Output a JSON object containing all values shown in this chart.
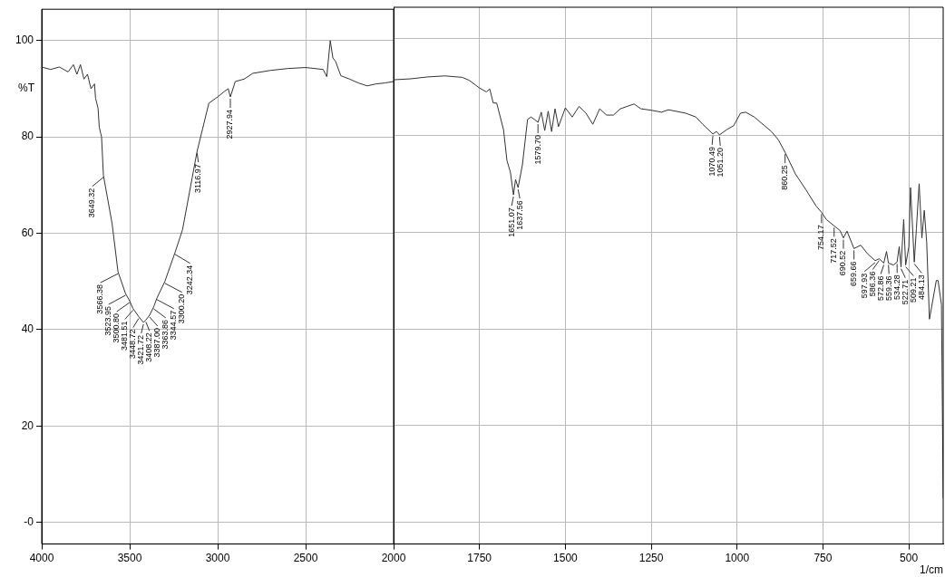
{
  "chart_data": [
    {
      "type": "line",
      "ylabel": "%T",
      "x": [
        4000,
        3950,
        3900,
        3850,
        3820,
        3800,
        3780,
        3760,
        3740,
        3720,
        3700,
        3694,
        3680,
        3673,
        3660,
        3649.32,
        3600,
        3566.38,
        3523.95,
        3500.8,
        3481.51,
        3448.72,
        3421.72,
        3408.22,
        3387,
        3363.86,
        3344.57,
        3300.2,
        3242.34,
        3200,
        3116.97,
        3050,
        3000,
        2960,
        2940,
        2927.94,
        2900,
        2850,
        2800,
        2700,
        2600,
        2500,
        2400,
        2380,
        2360,
        2345,
        2330,
        2300,
        2250,
        2200,
        2150,
        2100,
        2050,
        2000
      ],
      "values": [
        94.5,
        94,
        94.5,
        93.5,
        95,
        93,
        95,
        92,
        93,
        90,
        91,
        88,
        86,
        82,
        80,
        72,
        62,
        52,
        47.5,
        46,
        44.4,
        42.7,
        41.5,
        42,
        43,
        44.7,
        46.6,
        50,
        56,
        60.7,
        77,
        87,
        88.3,
        89.5,
        90,
        88.3,
        91.5,
        92,
        93.2,
        93.8,
        94.2,
        94.4,
        94,
        92.5,
        100,
        96.4,
        95.7,
        92.7,
        92,
        91.2,
        90.6,
        91,
        91.2,
        91.5
      ],
      "color": "#333333",
      "xlim": [
        4000,
        2000
      ],
      "xticks": [
        4000,
        3500,
        3000,
        2500,
        2000
      ],
      "ylim": [
        -4.5,
        106.5
      ],
      "yticks": [
        {
          "value": 0,
          "label": "-0"
        },
        20,
        40,
        60,
        80,
        100
      ],
      "grid": true,
      "annotations": [
        {
          "text": "3649.32",
          "x": 3649.32,
          "y": 72
        },
        {
          "text": "3566.38",
          "x": 3566.38,
          "y": 52
        },
        {
          "text": "3523.95",
          "x": 3523.95,
          "y": 47.5
        },
        {
          "text": "3500.80",
          "x": 3500.8,
          "y": 46
        },
        {
          "text": "3481.51",
          "x": 3481.51,
          "y": 44.4
        },
        {
          "text": "3448.72",
          "x": 3448.72,
          "y": 42.7
        },
        {
          "text": "3421.72",
          "x": 3421.72,
          "y": 41.5
        },
        {
          "text": "3408.22",
          "x": 3408.22,
          "y": 42
        },
        {
          "text": "3387.00",
          "x": 3387,
          "y": 43
        },
        {
          "text": "3363.86",
          "x": 3363.86,
          "y": 44.7
        },
        {
          "text": "3344.57",
          "x": 3344.57,
          "y": 46.6
        },
        {
          "text": "3300.20",
          "x": 3300.2,
          "y": 50
        },
        {
          "text": "3242.34",
          "x": 3242.34,
          "y": 56
        },
        {
          "text": "3116.97",
          "x": 3116.97,
          "y": 77
        },
        {
          "text": "2927.94",
          "x": 2927.94,
          "y": 88.3
        }
      ]
    },
    {
      "type": "line",
      "xlabel": "1/cm",
      "x": [
        2000,
        1950,
        1900,
        1850,
        1800,
        1780,
        1750,
        1730,
        1720,
        1710,
        1700,
        1680,
        1670,
        1660,
        1651.07,
        1645,
        1637.56,
        1625,
        1610,
        1600,
        1590,
        1579.7,
        1570,
        1560,
        1550,
        1540,
        1530,
        1520,
        1500,
        1480,
        1460,
        1440,
        1420,
        1400,
        1380,
        1360,
        1340,
        1300,
        1280,
        1250,
        1220,
        1200,
        1150,
        1120,
        1100,
        1070.49,
        1060,
        1051.2,
        1030,
        1010,
        990,
        975,
        950,
        920,
        900,
        880,
        860.25,
        830,
        800,
        770,
        754.17,
        740,
        717.52,
        700,
        690.52,
        680,
        659.66,
        640,
        620,
        597.93,
        586.36,
        572.86,
        565,
        559.36,
        545,
        534.28,
        528,
        522.71,
        515,
        509.21,
        500,
        495,
        484.13,
        478,
        470,
        462,
        455,
        448,
        440,
        420,
        415,
        405,
        400
      ],
      "values": [
        91.5,
        91.7,
        92.1,
        92.3,
        92,
        91.4,
        89.8,
        89,
        89.6,
        86.7,
        86.7,
        81.2,
        74.8,
        72.4,
        67.7,
        70.9,
        69.2,
        73.9,
        83.3,
        83.8,
        83.3,
        82.7,
        84.8,
        81,
        85,
        80.8,
        85.5,
        81.8,
        85.7,
        83.8,
        86,
        84.6,
        82.3,
        85.5,
        84.2,
        84.2,
        85.5,
        86.5,
        85.5,
        85.2,
        84.8,
        85.3,
        84.6,
        83.8,
        82.3,
        80.3,
        80.8,
        80.1,
        81.2,
        82,
        84.6,
        84.8,
        83.8,
        82,
        80.8,
        79.1,
        76.5,
        72,
        68.8,
        65.4,
        64.1,
        62.6,
        61.3,
        60.3,
        58.8,
        60.2,
        56.6,
        57.3,
        55.5,
        54.1,
        54.5,
        53.6,
        56,
        53.6,
        53.2,
        53.8,
        57,
        52.8,
        62.6,
        53.2,
        57,
        69.2,
        53.8,
        60.7,
        70,
        58.8,
        64.5,
        57.9,
        42,
        50,
        50,
        45,
        5
      ],
      "color": "#333333",
      "xlim": [
        2000,
        400
      ],
      "xticks": [
        1750,
        1500,
        1250,
        1000,
        750,
        500
      ],
      "ylim": [
        -4.5,
        106.5
      ],
      "yticks": [
        0,
        20,
        40,
        60,
        80,
        100
      ],
      "grid": true,
      "tick_labels": "x",
      "annotations": [
        {
          "text": "1651.07",
          "x": 1651.07,
          "y": 67.7
        },
        {
          "text": "1637.56",
          "x": 1637.56,
          "y": 69.2
        },
        {
          "text": "1579.70",
          "x": 1579.7,
          "y": 82.7
        },
        {
          "text": "1070.49",
          "x": 1070.49,
          "y": 80.3
        },
        {
          "text": "1051.20",
          "x": 1051.2,
          "y": 80.1
        },
        {
          "text": "860.25",
          "x": 860.25,
          "y": 76.5
        },
        {
          "text": "754.17",
          "x": 754.17,
          "y": 64.1
        },
        {
          "text": "717.52",
          "x": 717.52,
          "y": 61.3
        },
        {
          "text": "690.52",
          "x": 690.52,
          "y": 58.8
        },
        {
          "text": "659.66",
          "x": 659.66,
          "y": 56.6
        },
        {
          "text": "597.93",
          "x": 597.93,
          "y": 54.1
        },
        {
          "text": "586.36",
          "x": 586.36,
          "y": 54.5
        },
        {
          "text": "572.86",
          "x": 572.86,
          "y": 53.6
        },
        {
          "text": "559.36",
          "x": 559.36,
          "y": 53.6
        },
        {
          "text": "534.28",
          "x": 534.28,
          "y": 53.8
        },
        {
          "text": "522.71",
          "x": 522.71,
          "y": 52.8
        },
        {
          "text": "509.21",
          "x": 509.21,
          "y": 53.2
        },
        {
          "text": "484.13",
          "x": 484.13,
          "y": 53.8
        }
      ]
    }
  ]
}
